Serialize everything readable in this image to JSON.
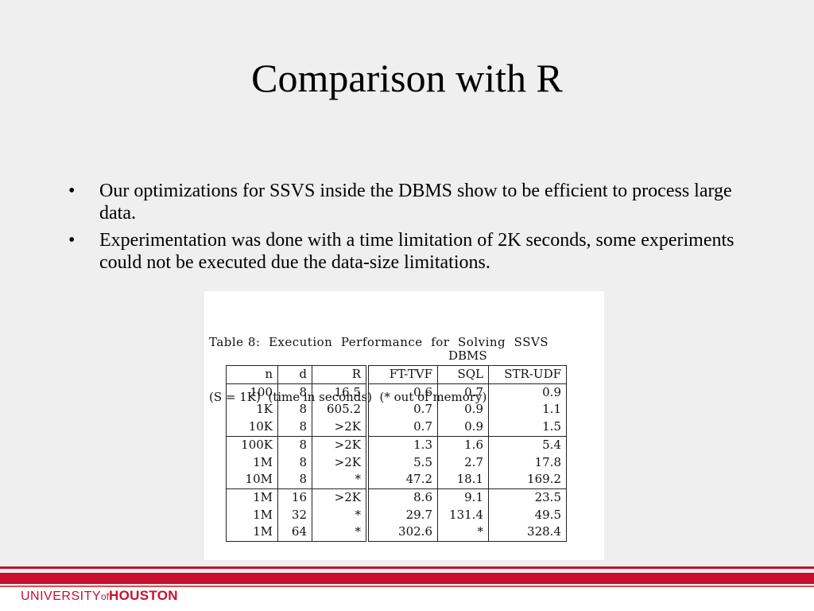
{
  "slide": {
    "title": "Comparison with R",
    "bullets": [
      "Our optimizations for SSVS inside the DBMS show to be efficient to process large data.",
      "Experimentation was done with a time limitation of 2K seconds, some experiments could not be executed due the data-size limitations."
    ],
    "bullet_symbol": "•"
  },
  "table_figure": {
    "caption_line1": "Table 8:  Execution  Performance  for  Solving  SSVS",
    "caption_line2": "(S = 1K)  (time in seconds)  (* out of memory)",
    "group_label": "DBMS",
    "columns": [
      "n",
      "d",
      "R",
      "FT-TVF",
      "SQL",
      "STR-UDF"
    ],
    "rows": [
      [
        "100",
        "8",
        "16.5",
        "0.6",
        "0.7",
        "0.9"
      ],
      [
        "1K",
        "8",
        "605.2",
        "0.7",
        "0.9",
        "1.1"
      ],
      [
        "10K",
        "8",
        ">2K",
        "0.7",
        "0.9",
        "1.5"
      ],
      [
        "100K",
        "8",
        ">2K",
        "1.3",
        "1.6",
        "5.4"
      ],
      [
        "1M",
        "8",
        ">2K",
        "5.5",
        "2.7",
        "17.8"
      ],
      [
        "10M",
        "8",
        "*",
        "47.2",
        "18.1",
        "169.2"
      ],
      [
        "1M",
        "16",
        ">2K",
        "8.6",
        "9.1",
        "23.5"
      ],
      [
        "1M",
        "32",
        "*",
        "29.7",
        "131.4",
        "49.5"
      ],
      [
        "1M",
        "64",
        "*",
        "302.6",
        "*",
        "328.4"
      ]
    ],
    "group_breaks_after_rows": [
      2,
      5
    ]
  },
  "footer": {
    "logo_university": "UNIVERSITY",
    "logo_of": "of",
    "logo_houston": "HOUSTON",
    "brand_color": "#c8102e"
  }
}
